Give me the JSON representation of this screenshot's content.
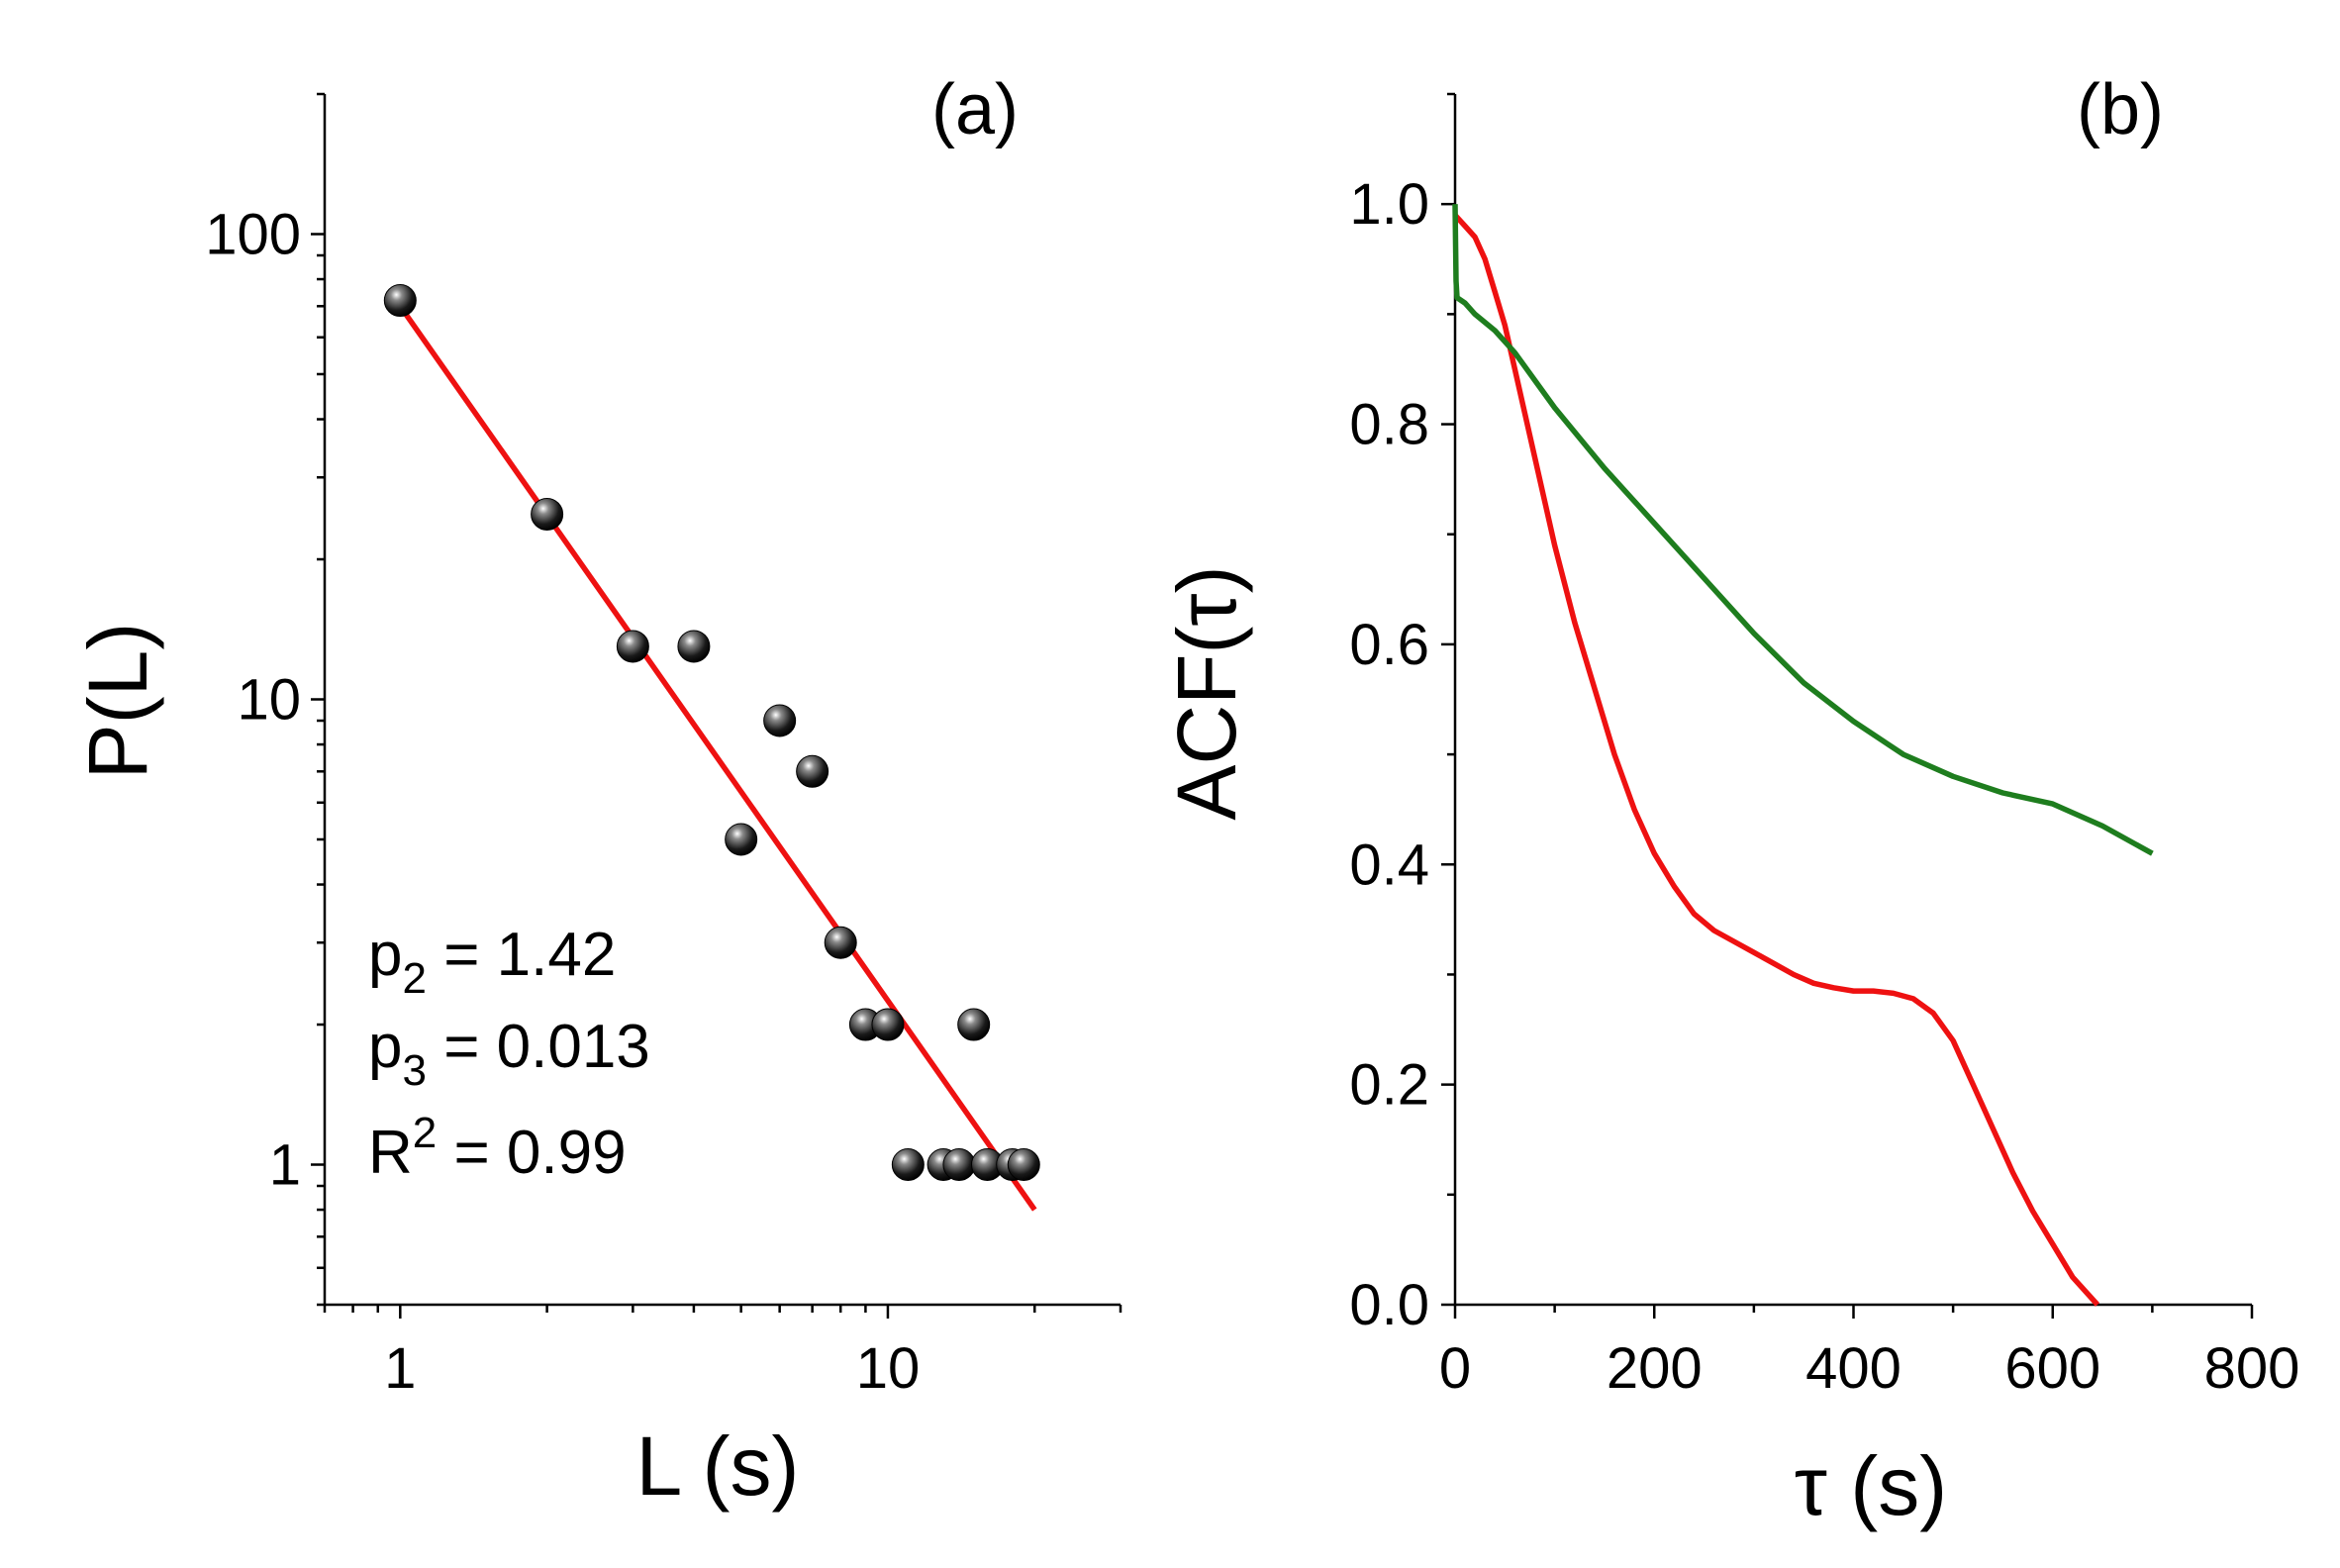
{
  "chart_data": [
    {
      "panel": "(a)",
      "type": "scatter",
      "xscale": "log",
      "yscale": "log",
      "xlabel": "L (s)",
      "ylabel": "P(L)",
      "xlim": [
        0.7,
        30
      ],
      "ylim": [
        0.5,
        200
      ],
      "xticks": [
        1,
        10
      ],
      "yticks": [
        1,
        10,
        100
      ],
      "series": [
        {
          "name": "data",
          "marker": "black sphere",
          "points": [
            {
              "x": 1,
              "y": 72
            },
            {
              "x": 2,
              "y": 25
            },
            {
              "x": 3,
              "y": 13
            },
            {
              "x": 4,
              "y": 13
            },
            {
              "x": 5,
              "y": 5
            },
            {
              "x": 6,
              "y": 9
            },
            {
              "x": 7,
              "y": 7
            },
            {
              "x": 8,
              "y": 3
            },
            {
              "x": 9,
              "y": 2
            },
            {
              "x": 10,
              "y": 2
            },
            {
              "x": 11,
              "y": 1
            },
            {
              "x": 13,
              "y": 1
            },
            {
              "x": 14,
              "y": 1
            },
            {
              "x": 15,
              "y": 2
            },
            {
              "x": 16,
              "y": 1
            },
            {
              "x": 18,
              "y": 1
            },
            {
              "x": 19,
              "y": 1
            }
          ]
        },
        {
          "name": "fit",
          "type": "line",
          "color": "#ee1111",
          "points": [
            {
              "x": 1,
              "y": 70
            },
            {
              "x": 20,
              "y": 0.8
            }
          ]
        }
      ],
      "annotations": [
        {
          "base": "p",
          "sub": "2",
          "sup": "",
          "text": " = 1.42"
        },
        {
          "base": "p",
          "sub": "3",
          "sup": "",
          "text": " = 0.013"
        },
        {
          "base": "R",
          "sub": "",
          "sup": "2",
          "text": " = 0.99"
        }
      ]
    },
    {
      "panel": "(b)",
      "type": "line",
      "xlabel": "τ (s)",
      "ylabel": "ACF(τ)",
      "xlim": [
        0,
        800
      ],
      "ylim": [
        0,
        1.1
      ],
      "xticks": [
        0,
        200,
        400,
        600,
        800
      ],
      "yticks": [
        0.0,
        0.2,
        0.4,
        0.6,
        0.8,
        1.0
      ],
      "xtick_labels": [
        "0",
        "200",
        "400",
        "600",
        "800"
      ],
      "ytick_labels": [
        "0.0",
        "0.2",
        "0.4",
        "0.6",
        "0.8",
        "1.0"
      ],
      "series": [
        {
          "name": "red",
          "color": "#ee1111",
          "x": [
            0,
            10,
            20,
            30,
            40,
            50,
            60,
            80,
            100,
            120,
            140,
            160,
            180,
            200,
            220,
            240,
            260,
            280,
            300,
            320,
            340,
            360,
            380,
            400,
            420,
            440,
            460,
            480,
            500,
            520,
            540,
            560,
            580,
            600,
            620,
            645
          ],
          "y": [
            0.99,
            0.98,
            0.97,
            0.95,
            0.92,
            0.89,
            0.85,
            0.77,
            0.69,
            0.62,
            0.56,
            0.5,
            0.45,
            0.41,
            0.38,
            0.355,
            0.34,
            0.33,
            0.32,
            0.31,
            0.3,
            0.292,
            0.288,
            0.285,
            0.285,
            0.283,
            0.278,
            0.265,
            0.24,
            0.2,
            0.16,
            0.12,
            0.085,
            0.055,
            0.025,
            0.0
          ]
        },
        {
          "name": "green",
          "color": "#1e7d1e",
          "x": [
            0,
            1,
            2,
            10,
            20,
            40,
            60,
            80,
            100,
            150,
            200,
            250,
            300,
            350,
            400,
            450,
            500,
            550,
            600,
            650,
            700
          ],
          "y": [
            1.0,
            0.93,
            0.915,
            0.91,
            0.9,
            0.885,
            0.865,
            0.84,
            0.815,
            0.76,
            0.71,
            0.66,
            0.61,
            0.565,
            0.53,
            0.5,
            0.48,
            0.465,
            0.455,
            0.435,
            0.41
          ]
        }
      ]
    }
  ]
}
